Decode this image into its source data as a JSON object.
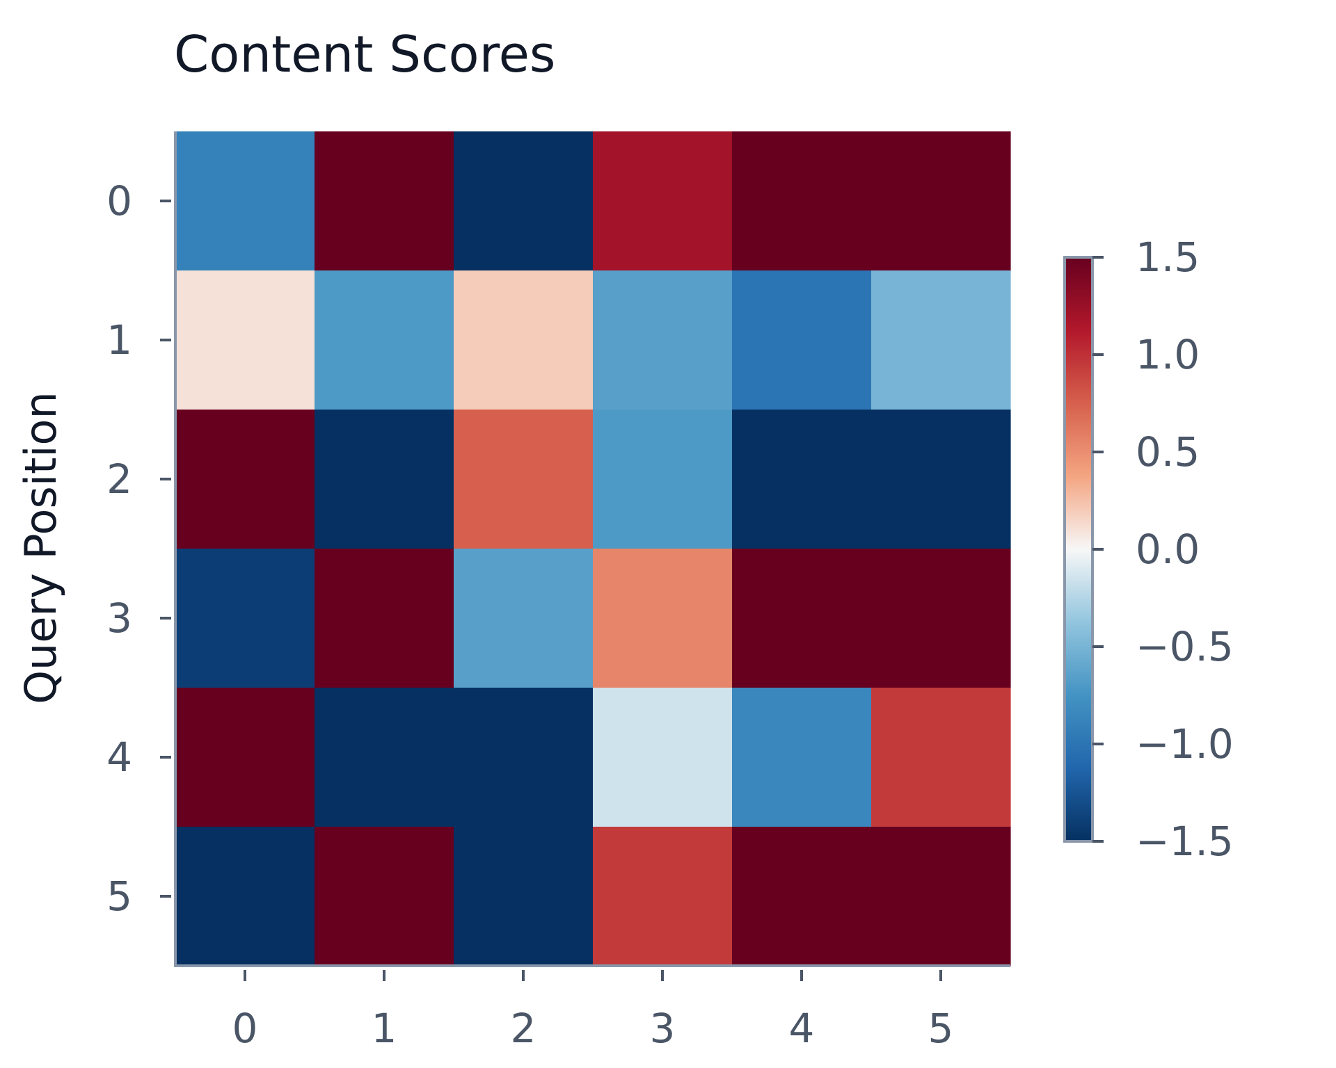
{
  "chart_data": {
    "type": "heatmap",
    "title": "Content Scores",
    "xlabel": "",
    "ylabel": "Query Position",
    "x_categories": [
      "0",
      "1",
      "2",
      "3",
      "4",
      "5"
    ],
    "y_categories": [
      "0",
      "1",
      "2",
      "3",
      "4",
      "5"
    ],
    "values": [
      [
        -0.9,
        1.5,
        -1.5,
        1.2,
        1.5,
        1.5
      ],
      [
        0.1,
        -0.7,
        0.2,
        -0.65,
        -1.0,
        -0.5
      ],
      [
        1.5,
        -1.5,
        0.75,
        -0.7,
        -1.5,
        -1.5
      ],
      [
        -1.4,
        1.5,
        -0.65,
        0.55,
        1.5,
        1.5
      ],
      [
        1.5,
        -1.5,
        -1.5,
        -0.15,
        -0.85,
        0.95
      ],
      [
        -1.5,
        1.5,
        -1.5,
        0.95,
        1.5,
        1.5
      ]
    ],
    "colorbar": {
      "min": -1.5,
      "max": 1.5,
      "ticks": [
        1.5,
        1.0,
        0.5,
        0.0,
        -0.5,
        -1.0,
        -1.5
      ],
      "tick_labels": [
        "1.5",
        "1.0",
        "0.5",
        "0.0",
        "−0.5",
        "−1.0",
        "−1.5"
      ],
      "colormap": "RdBu_r"
    },
    "grid": false,
    "colors": {
      "axis": "#8a97ab",
      "tick_text": "#4a5566",
      "title_text": "#111827"
    }
  }
}
